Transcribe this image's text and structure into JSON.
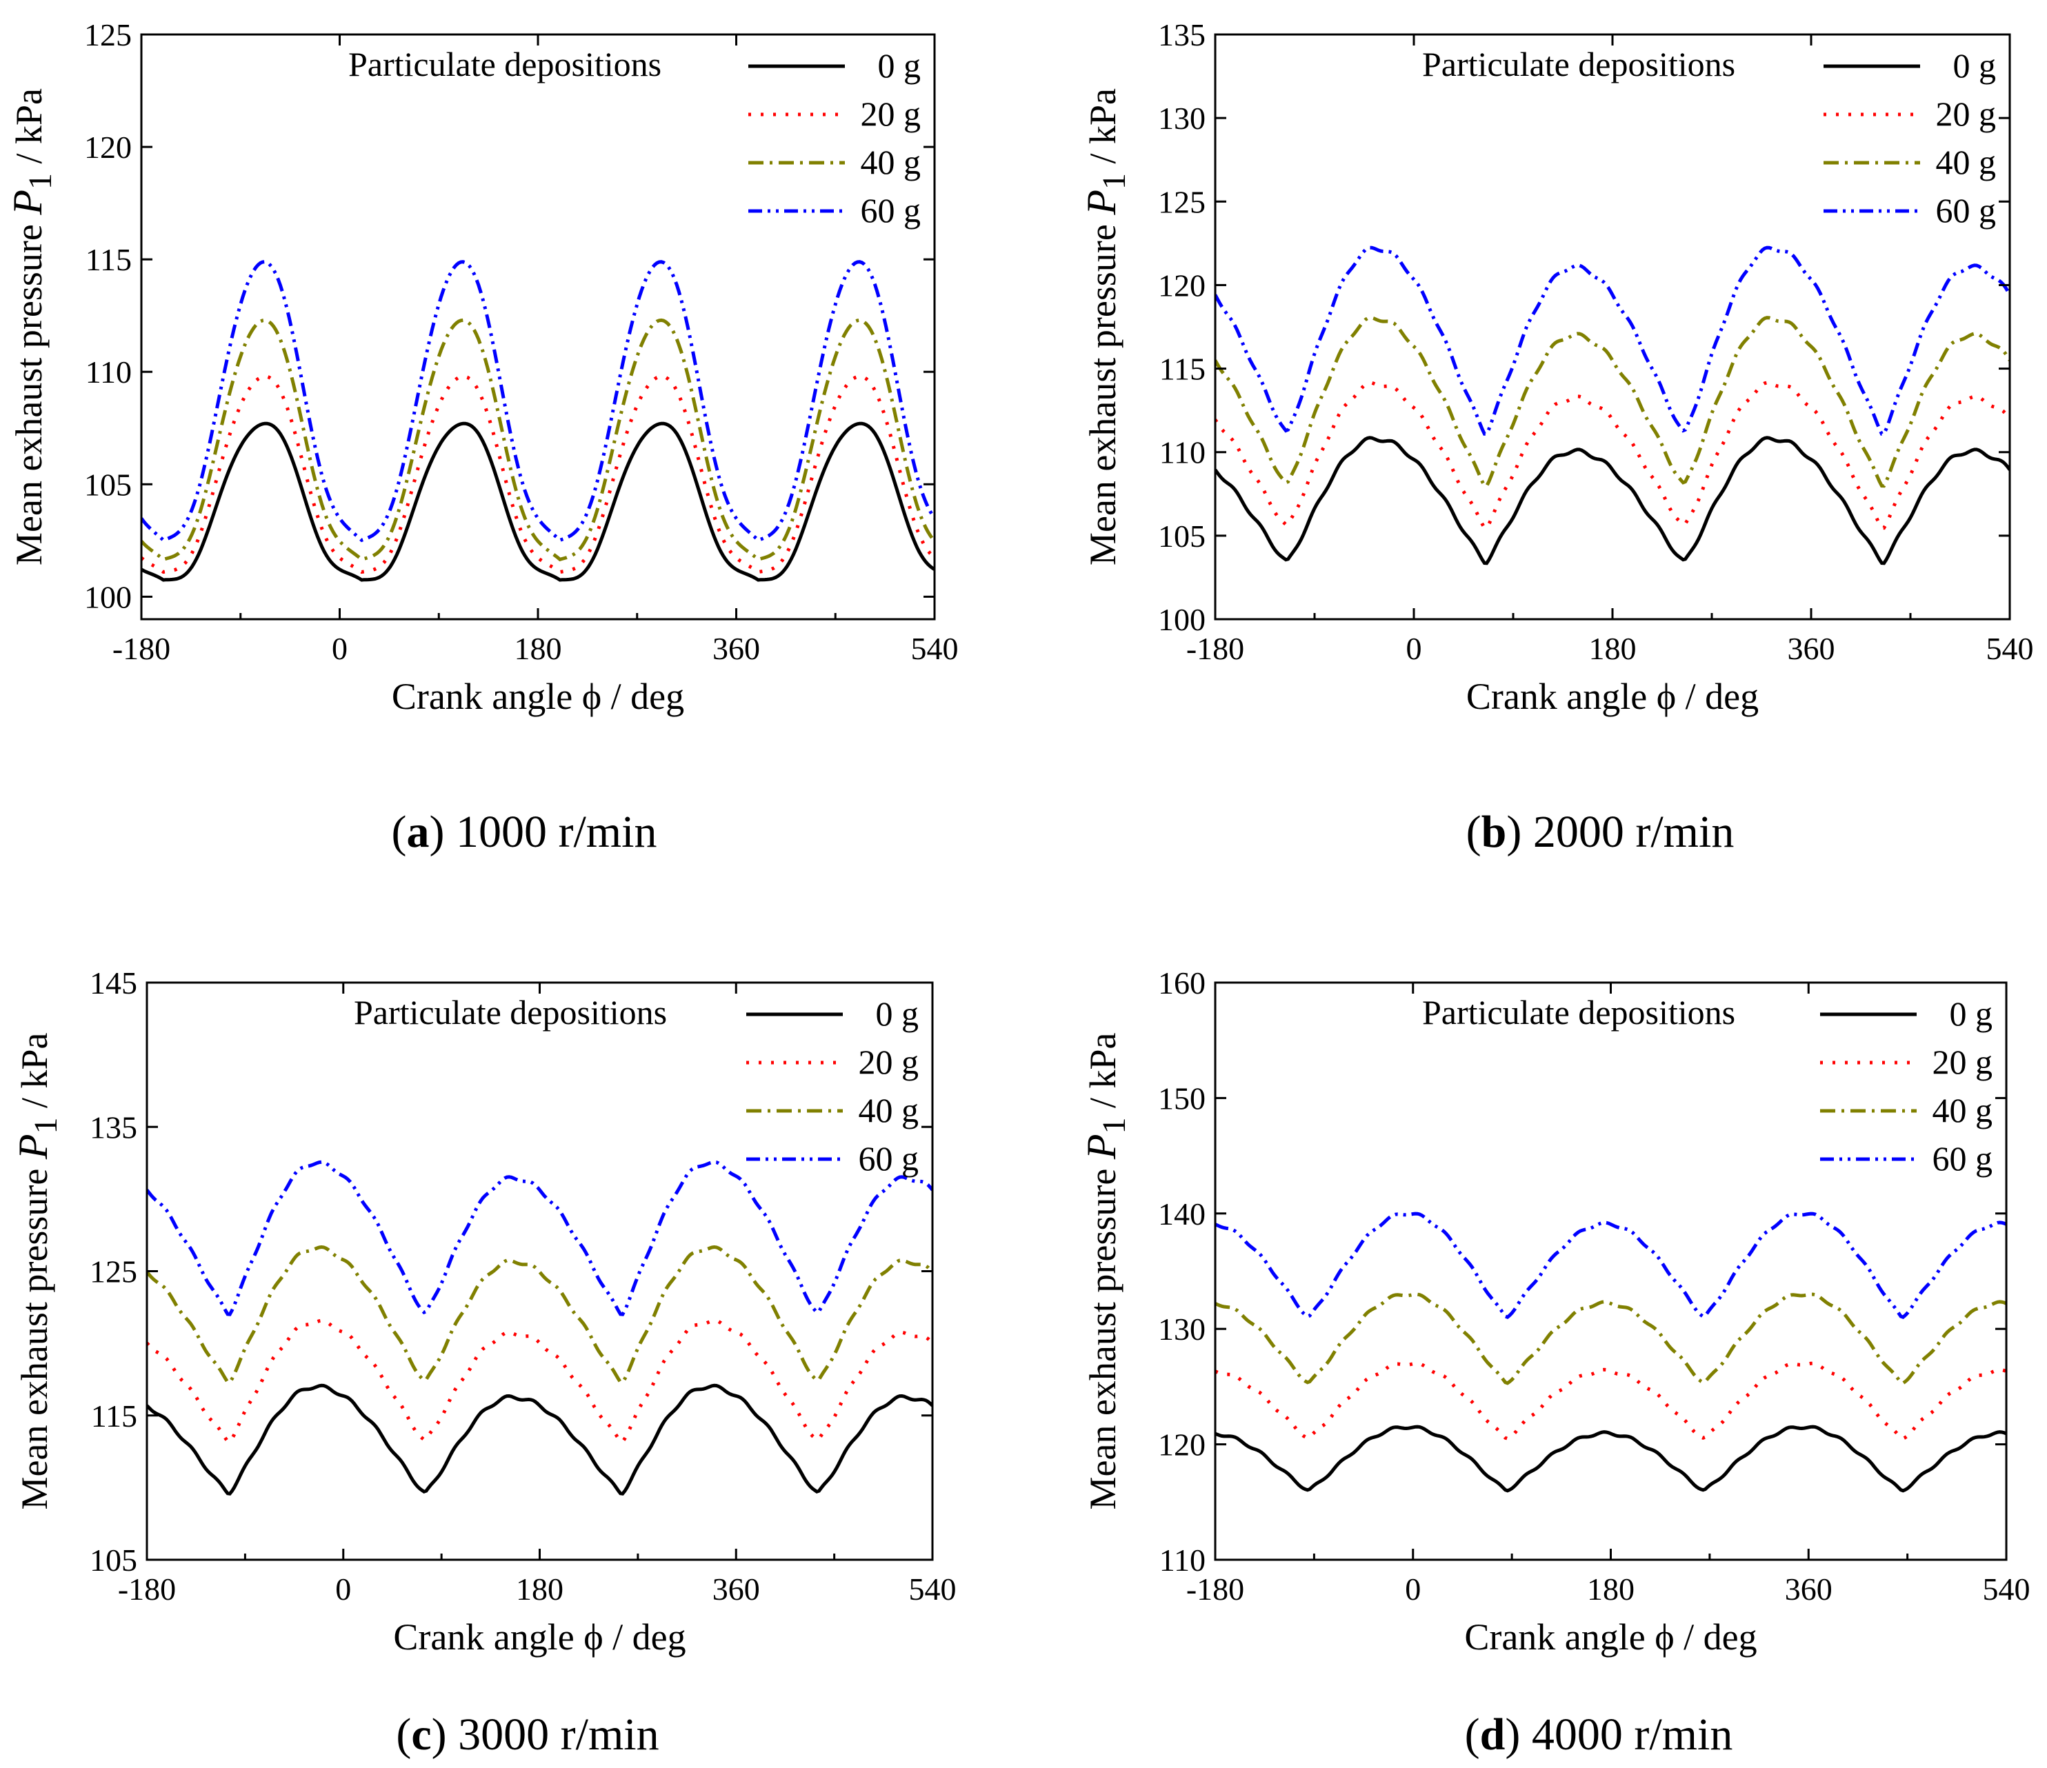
{
  "legend_colors": {
    "0 g": "#000000",
    "20 g": "#ff0000",
    "40 g": "#808000",
    "60 g": "#0000ff"
  },
  "chart_data": [
    {
      "type": "line",
      "caption_letter": "a",
      "caption_text": "1000 r/min",
      "legend_title": "Particulate depositions",
      "xlabel": "Crank angle  ϕ / deg",
      "ylabel": "Mean exhaust pressure ",
      "ylabel_symbol": "P",
      "ylabel_sub": "1",
      "ylabel_unit": "  /  kPa",
      "xlim": [
        -180,
        540
      ],
      "ylim": [
        99,
        125
      ],
      "xticks": [
        -180,
        0,
        180,
        360,
        540
      ],
      "yticks": [
        100,
        105,
        110,
        115,
        120,
        125
      ],
      "pattern": "pulse",
      "period": 180,
      "peak_at": 110,
      "series": [
        {
          "name": "0 g",
          "base": 100.3,
          "peak": 107.9,
          "color": "#000000",
          "dash": ""
        },
        {
          "name": "20 g",
          "base": 100.6,
          "peak": 110.0,
          "color": "#ff0000",
          "dash": "4 14"
        },
        {
          "name": "40 g",
          "base": 101.1,
          "peak": 112.5,
          "color": "#808000",
          "dash": "22 9 4 9"
        },
        {
          "name": "60 g",
          "base": 101.9,
          "peak": 115.1,
          "color": "#0000ff",
          "dash": "20 8 4 8 4 8"
        }
      ]
    },
    {
      "type": "line",
      "caption_letter": "b",
      "caption_text": "2000 r/min",
      "legend_title": "Particulate depositions",
      "xlabel": "Crank angle  ϕ / deg",
      "ylabel": "Mean exhaust pressure ",
      "ylabel_symbol": "P",
      "ylabel_sub": "1",
      "ylabel_unit": "  /  kPa",
      "xlim": [
        -180,
        540
      ],
      "ylim": [
        100,
        135
      ],
      "xticks": [
        -180,
        0,
        180,
        360,
        540
      ],
      "yticks": [
        100,
        105,
        110,
        115,
        120,
        125,
        130,
        135
      ],
      "pattern": "wave",
      "period": 180,
      "peak_at": -35,
      "trough_at": -115,
      "series": [
        {
          "name": "0 g",
          "base": 103.4,
          "peak": 110.8,
          "color": "#000000",
          "dash": ""
        },
        {
          "name": "20 g",
          "base": 105.5,
          "peak": 114.1,
          "color": "#ff0000",
          "dash": "4 14"
        },
        {
          "name": "40 g",
          "base": 108.0,
          "peak": 118.0,
          "color": "#808000",
          "dash": "22 9 4 9"
        },
        {
          "name": "60 g",
          "base": 111.1,
          "peak": 122.2,
          "color": "#0000ff",
          "dash": "20 8 4 8 4 8"
        }
      ]
    },
    {
      "type": "line",
      "caption_letter": "c",
      "caption_text": "3000 r/min",
      "legend_title": "Particulate depositions",
      "xlabel": "Crank angle  ϕ / deg",
      "ylabel": "Mean exhaust pressure ",
      "ylabel_symbol": "P",
      "ylabel_sub": "1",
      "ylabel_unit": "  /  kPa",
      "xlim": [
        -180,
        540
      ],
      "ylim": [
        105,
        145
      ],
      "xticks": [
        -180,
        0,
        180,
        360,
        540
      ],
      "yticks": [
        105,
        115,
        125,
        135,
        145
      ],
      "pattern": "wave",
      "period": 180,
      "peak_at": -25,
      "trough_at": -105,
      "series": [
        {
          "name": "0 g",
          "base": 109.6,
          "peak": 117.0,
          "color": "#000000",
          "dash": ""
        },
        {
          "name": "20 g",
          "base": 113.2,
          "peak": 121.5,
          "color": "#ff0000",
          "dash": "4 14"
        },
        {
          "name": "40 g",
          "base": 117.3,
          "peak": 126.6,
          "color": "#808000",
          "dash": "22 9 4 9"
        },
        {
          "name": "60 g",
          "base": 122.0,
          "peak": 132.5,
          "color": "#0000ff",
          "dash": "20 8 4 8 4 8"
        }
      ]
    },
    {
      "type": "line",
      "caption_letter": "d",
      "caption_text": "4000 r/min",
      "legend_title": "Particulate depositions",
      "xlabel": "Crank angle  ϕ / deg",
      "ylabel": "Mean exhaust pressure ",
      "ylabel_symbol": "P",
      "ylabel_sub": "1",
      "ylabel_unit": "  /  kPa",
      "xlim": [
        -180,
        540
      ],
      "ylim": [
        110,
        160
      ],
      "xticks": [
        -180,
        0,
        180,
        360,
        540
      ],
      "yticks": [
        110,
        120,
        130,
        140,
        150,
        160
      ],
      "pattern": "wave",
      "period": 180,
      "peak_at": -5,
      "trough_at": -95,
      "series": [
        {
          "name": "0 g",
          "base": 116.0,
          "peak": 121.5,
          "color": "#000000",
          "dash": ""
        },
        {
          "name": "20 g",
          "base": 120.5,
          "peak": 127.0,
          "color": "#ff0000",
          "dash": "4 14"
        },
        {
          "name": "40 g",
          "base": 125.3,
          "peak": 133.0,
          "color": "#808000",
          "dash": "22 9 4 9"
        },
        {
          "name": "60 g",
          "base": 131.0,
          "peak": 140.0,
          "color": "#0000ff",
          "dash": "20 8 4 8 4 8"
        }
      ]
    }
  ]
}
